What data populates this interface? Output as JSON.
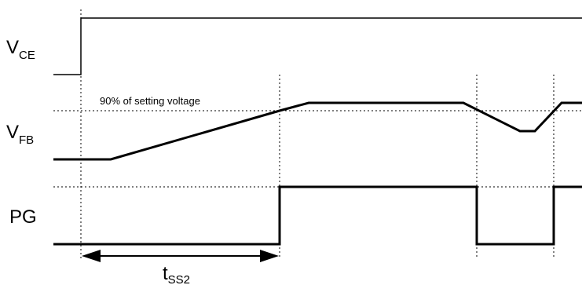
{
  "signals": {
    "vce": {
      "main": "V",
      "sub": "CE"
    },
    "vfb": {
      "main": "V",
      "sub": "FB"
    },
    "pg": {
      "label": "PG"
    }
  },
  "annotation": {
    "threshold_label": "90% of setting voltage"
  },
  "dimension": {
    "main": "t",
    "sub": "SS2"
  }
}
